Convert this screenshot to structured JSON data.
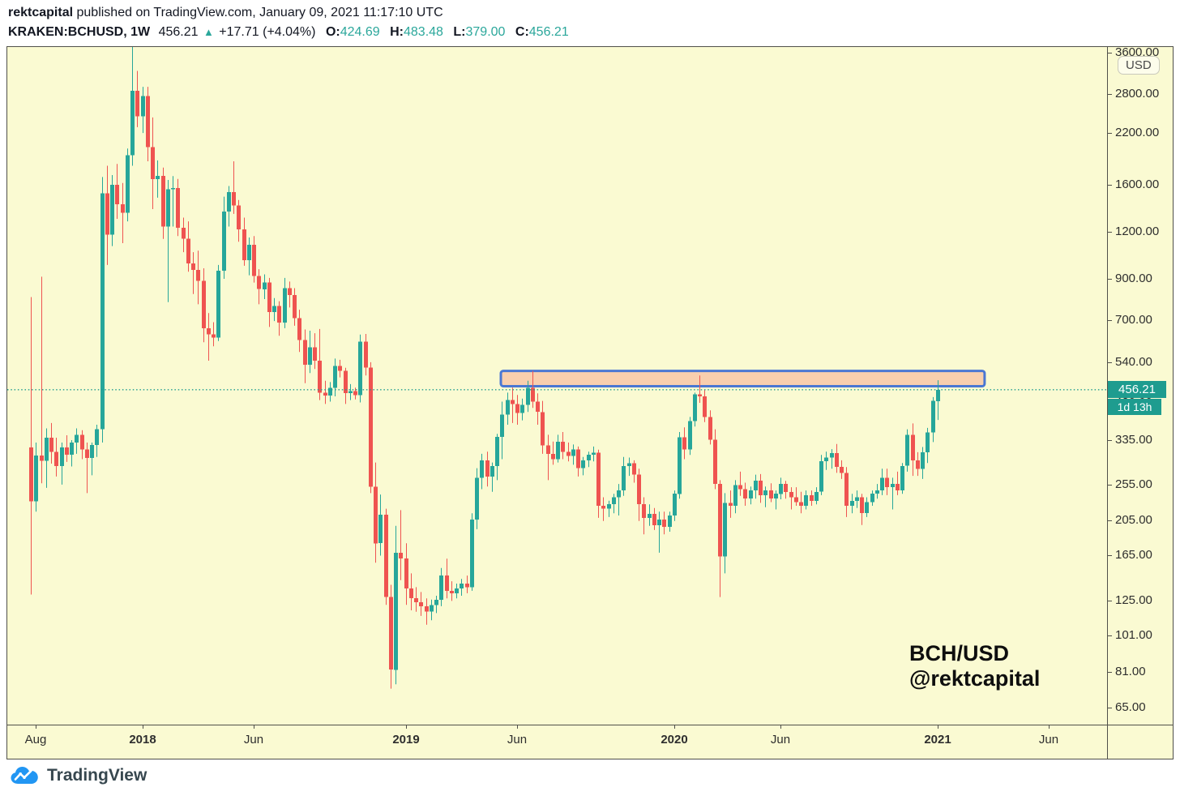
{
  "header": {
    "attribution": {
      "author": "rektcapital",
      "text": " published on TradingView.com, January 09, 2021 11:17:10 UTC"
    },
    "symbol": {
      "name": "KRAKEN:BCHUSD, 1W",
      "last": "456.21",
      "up_arrow": "▲",
      "change": "+17.71 (+4.04%)",
      "ohlc": [
        {
          "label": "O:",
          "value": "424.69"
        },
        {
          "label": "H:",
          "value": "483.48"
        },
        {
          "label": "L:",
          "value": "379.00"
        },
        {
          "label": "C:",
          "value": "456.21"
        }
      ]
    }
  },
  "price_axis": {
    "currency": "USD",
    "ticks": [
      {
        "label": "3600.00",
        "price": 3600
      },
      {
        "label": "2800.00",
        "price": 2800
      },
      {
        "label": "2200.00",
        "price": 2200
      },
      {
        "label": "1600.00",
        "price": 1600
      },
      {
        "label": "1200.00",
        "price": 1200
      },
      {
        "label": "900.00",
        "price": 900
      },
      {
        "label": "700.00",
        "price": 700
      },
      {
        "label": "540.00",
        "price": 540
      },
      {
        "label": "420.00",
        "price": 420
      },
      {
        "label": "335.00",
        "price": 335
      },
      {
        "label": "255.00",
        "price": 255
      },
      {
        "label": "205.00",
        "price": 205
      },
      {
        "label": "165.00",
        "price": 165
      },
      {
        "label": "125.00",
        "price": 125
      },
      {
        "label": "101.00",
        "price": 101
      },
      {
        "label": "81.00",
        "price": 81
      },
      {
        "label": "65.00",
        "price": 65
      }
    ],
    "last_price_label": "456.21",
    "countdown": "1d 13h"
  },
  "time_axis": {
    "ticks": [
      {
        "label": "Aug",
        "week": 1,
        "bold": false
      },
      {
        "label": "2018",
        "week": 22,
        "bold": true
      },
      {
        "label": "Jun",
        "week": 44,
        "bold": false
      },
      {
        "label": "2019",
        "week": 74,
        "bold": true
      },
      {
        "label": "Jun",
        "week": 96,
        "bold": false
      },
      {
        "label": "2020",
        "week": 127,
        "bold": true
      },
      {
        "label": "Jun",
        "week": 148,
        "bold": false
      },
      {
        "label": "2021",
        "week": 179,
        "bold": true
      },
      {
        "label": "Jun",
        "week": 201,
        "bold": false
      }
    ]
  },
  "watermark": {
    "line1": "BCH/USD",
    "line2": "@rektcapital"
  },
  "brand": {
    "name": "TradingView"
  },
  "colors": {
    "up": "#26A69A",
    "down": "#EF5350",
    "background": "#FAFAD2",
    "box_fill": "#F8CFAE",
    "box_border": "#4A77D3",
    "price_line": "#1E9C8F",
    "price_label_bg": "#1E9C8F",
    "ohlc_value": "#2BA79B",
    "brand_blue": "#2196F3"
  },
  "chart_data": {
    "type": "candlestick",
    "symbol": "KRAKEN:BCHUSD",
    "timeframe": "1W",
    "scale": "log",
    "title": "BCH/USD weekly chart with resistance zone",
    "y_axis_ticks": [
      3600,
      2800,
      2200,
      1600,
      1200,
      900,
      700,
      540,
      420,
      335,
      255,
      205,
      165,
      125,
      101,
      81,
      65
    ],
    "x_axis_labels": [
      "Aug",
      "2018",
      "Jun",
      "2019",
      "Jun",
      "2020",
      "Jun",
      "2021",
      "Jun"
    ],
    "current_price": 456.21,
    "last_candle": {
      "open": 424.69,
      "high": 483.48,
      "low": 379.0,
      "close": 456.21
    },
    "resistance_zone": {
      "price_top": 512,
      "price_bottom": 466,
      "week_start": 92.8,
      "week_end": 188.3
    },
    "candles_ohlc": [
      [
        320,
        805,
        130,
        230
      ],
      [
        230,
        330,
        216,
        305
      ],
      [
        305,
        912,
        257,
        295
      ],
      [
        295,
        360,
        250,
        340
      ],
      [
        340,
        372,
        290,
        312
      ],
      [
        312,
        340,
        268,
        286
      ],
      [
        286,
        330,
        255,
        320
      ],
      [
        320,
        345,
        293,
        306
      ],
      [
        306,
        335,
        285,
        330
      ],
      [
        330,
        360,
        308,
        346
      ],
      [
        346,
        356,
        298,
        316
      ],
      [
        316,
        330,
        242,
        300
      ],
      [
        300,
        330,
        270,
        325
      ],
      [
        325,
        368,
        302,
        358
      ],
      [
        358,
        1680,
        330,
        1520
      ],
      [
        1520,
        1800,
        980,
        1180
      ],
      [
        1180,
        1700,
        1100,
        1600
      ],
      [
        1600,
        1820,
        1300,
        1420
      ],
      [
        1420,
        1620,
        1120,
        1350
      ],
      [
        1350,
        2000,
        1280,
        1920
      ],
      [
        1920,
        4050,
        1800,
        2850
      ],
      [
        2850,
        3220,
        2280,
        2440
      ],
      [
        2440,
        2920,
        2200,
        2760
      ],
      [
        2760,
        2920,
        1850,
        2020
      ],
      [
        2020,
        2420,
        1380,
        1660
      ],
      [
        1660,
        1860,
        1480,
        1690
      ],
      [
        1690,
        1780,
        1150,
        1240
      ],
      [
        1240,
        1650,
        780,
        1560
      ],
      [
        1560,
        1690,
        1240,
        1570
      ],
      [
        1570,
        1660,
        1170,
        1230
      ],
      [
        1230,
        1310,
        1060,
        1150
      ],
      [
        1150,
        1280,
        940,
        990
      ],
      [
        990,
        1060,
        820,
        950
      ],
      [
        950,
        1070,
        770,
        890
      ],
      [
        890,
        960,
        610,
        665
      ],
      [
        665,
        730,
        545,
        640
      ],
      [
        640,
        690,
        595,
        628
      ],
      [
        628,
        980,
        615,
        945
      ],
      [
        945,
        1490,
        900,
        1360
      ],
      [
        1360,
        1590,
        1240,
        1530
      ],
      [
        1530,
        1850,
        1340,
        1410
      ],
      [
        1410,
        1460,
        1130,
        1220
      ],
      [
        1220,
        1310,
        975,
        1010
      ],
      [
        1010,
        1160,
        920,
        1110
      ],
      [
        1110,
        1170,
        880,
        915
      ],
      [
        915,
        955,
        770,
        845
      ],
      [
        845,
        925,
        795,
        880
      ],
      [
        880,
        905,
        670,
        735
      ],
      [
        735,
        800,
        695,
        762
      ],
      [
        762,
        785,
        635,
        688
      ],
      [
        688,
        905,
        665,
        850
      ],
      [
        850,
        885,
        755,
        815
      ],
      [
        815,
        850,
        675,
        708
      ],
      [
        708,
        745,
        575,
        618
      ],
      [
        618,
        660,
        475,
        532
      ],
      [
        532,
        655,
        505,
        592
      ],
      [
        592,
        645,
        518,
        545
      ],
      [
        545,
        662,
        428,
        448
      ],
      [
        448,
        482,
        418,
        440
      ],
      [
        440,
        478,
        424,
        462
      ],
      [
        462,
        552,
        438,
        528
      ],
      [
        528,
        548,
        492,
        512
      ],
      [
        512,
        522,
        418,
        447
      ],
      [
        447,
        472,
        428,
        452
      ],
      [
        452,
        462,
        430,
        441
      ],
      [
        441,
        640,
        422,
        612
      ],
      [
        612,
        642,
        498,
        522
      ],
      [
        522,
        540,
        242,
        252
      ],
      [
        252,
        292,
        158,
        178
      ],
      [
        178,
        240,
        165,
        212
      ],
      [
        212,
        220,
        122,
        128
      ],
      [
        128,
        138,
        73,
        82
      ],
      [
        82,
        198,
        75,
        168
      ],
      [
        168,
        218,
        142,
        162
      ],
      [
        162,
        178,
        122,
        135
      ],
      [
        135,
        148,
        118,
        127
      ],
      [
        127,
        136,
        117,
        124
      ],
      [
        124,
        132,
        114,
        121
      ],
      [
        121,
        127,
        108,
        117
      ],
      [
        117,
        126,
        111,
        122
      ],
      [
        122,
        129,
        116,
        126
      ],
      [
        126,
        153,
        121,
        146
      ],
      [
        146,
        162,
        127,
        133
      ],
      [
        133,
        141,
        125,
        131
      ],
      [
        131,
        139,
        127,
        135
      ],
      [
        135,
        143,
        129,
        139
      ],
      [
        139,
        146,
        131,
        136
      ],
      [
        136,
        214,
        133,
        206
      ],
      [
        206,
        282,
        194,
        266
      ],
      [
        266,
        308,
        248,
        296
      ],
      [
        296,
        312,
        252,
        268
      ],
      [
        268,
        292,
        244,
        286
      ],
      [
        286,
        348,
        262,
        342
      ],
      [
        342,
        424,
        298,
        392
      ],
      [
        392,
        448,
        368,
        428
      ],
      [
        428,
        462,
        372,
        418
      ],
      [
        418,
        442,
        368,
        396
      ],
      [
        396,
        432,
        378,
        416
      ],
      [
        416,
        482,
        398,
        462
      ],
      [
        462,
        512,
        408,
        424
      ],
      [
        424,
        446,
        368,
        398
      ],
      [
        398,
        426,
        308,
        324
      ],
      [
        324,
        346,
        262,
        308
      ],
      [
        308,
        332,
        288,
        298
      ],
      [
        298,
        346,
        292,
        332
      ],
      [
        332,
        352,
        298,
        312
      ],
      [
        312,
        330,
        294,
        304
      ],
      [
        304,
        326,
        288,
        316
      ],
      [
        316,
        322,
        268,
        282
      ],
      [
        282,
        302,
        270,
        296
      ],
      [
        296,
        312,
        284,
        306
      ],
      [
        306,
        322,
        294,
        310
      ],
      [
        310,
        316,
        208,
        224
      ],
      [
        224,
        236,
        204,
        220
      ],
      [
        220,
        231,
        209,
        226
      ],
      [
        226,
        241,
        214,
        236
      ],
      [
        236,
        256,
        211,
        246
      ],
      [
        246,
        302,
        238,
        286
      ],
      [
        286,
        301,
        269,
        291
      ],
      [
        291,
        296,
        258,
        271
      ],
      [
        271,
        281,
        204,
        226
      ],
      [
        226,
        236,
        188,
        208
      ],
      [
        208,
        226,
        198,
        213
      ],
      [
        213,
        221,
        193,
        199
      ],
      [
        199,
        216,
        168,
        206
      ],
      [
        206,
        216,
        188,
        197
      ],
      [
        197,
        216,
        191,
        211
      ],
      [
        211,
        246,
        204,
        241
      ],
      [
        241,
        352,
        234,
        341
      ],
      [
        341,
        362,
        298,
        316
      ],
      [
        316,
        386,
        306,
        376
      ],
      [
        376,
        448,
        364,
        443
      ],
      [
        443,
        498,
        421,
        438
      ],
      [
        438,
        456,
        374,
        386
      ],
      [
        386,
        402,
        326,
        336
      ],
      [
        336,
        358,
        248,
        256
      ],
      [
        256,
        262,
        128,
        164
      ],
      [
        164,
        242,
        148,
        228
      ],
      [
        228,
        246,
        208,
        224
      ],
      [
        224,
        262,
        214,
        254
      ],
      [
        254,
        276,
        238,
        248
      ],
      [
        248,
        258,
        224,
        234
      ],
      [
        234,
        252,
        226,
        246
      ],
      [
        246,
        271,
        234,
        261
      ],
      [
        261,
        272,
        228,
        239
      ],
      [
        239,
        252,
        222,
        246
      ],
      [
        246,
        257,
        229,
        234
      ],
      [
        234,
        246,
        219,
        241
      ],
      [
        241,
        266,
        233,
        256
      ],
      [
        256,
        261,
        234,
        244
      ],
      [
        244,
        251,
        219,
        236
      ],
      [
        236,
        251,
        224,
        229
      ],
      [
        229,
        244,
        214,
        224
      ],
      [
        224,
        246,
        219,
        239
      ],
      [
        239,
        246,
        224,
        231
      ],
      [
        231,
        251,
        226,
        244
      ],
      [
        244,
        306,
        239,
        294
      ],
      [
        294,
        312,
        279,
        301
      ],
      [
        301,
        317,
        281,
        309
      ],
      [
        309,
        327,
        274,
        284
      ],
      [
        284,
        296,
        264,
        274
      ],
      [
        274,
        284,
        209,
        224
      ],
      [
        224,
        241,
        214,
        231
      ],
      [
        231,
        246,
        221,
        236
      ],
      [
        236,
        241,
        199,
        214
      ],
      [
        214,
        236,
        209,
        229
      ],
      [
        229,
        246,
        224,
        241
      ],
      [
        241,
        256,
        234,
        246
      ],
      [
        246,
        281,
        239,
        266
      ],
      [
        266,
        281,
        239,
        251
      ],
      [
        251,
        266,
        219,
        256
      ],
      [
        256,
        276,
        239,
        246
      ],
      [
        246,
        291,
        241,
        286
      ],
      [
        286,
        358,
        276,
        346
      ],
      [
        346,
        371,
        269,
        296
      ],
      [
        296,
        311,
        269,
        281
      ],
      [
        281,
        321,
        264,
        311
      ],
      [
        311,
        361,
        291,
        351
      ],
      [
        351,
        436,
        331,
        426
      ],
      [
        424.69,
        483.48,
        379,
        456.21
      ]
    ]
  }
}
